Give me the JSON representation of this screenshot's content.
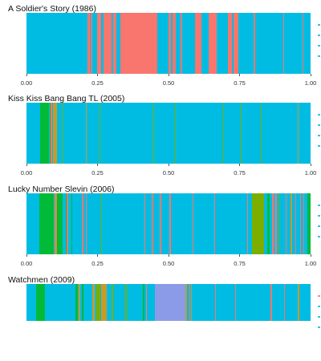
{
  "colors": {
    "base": "#00BCE3",
    "red": "#F8766D",
    "green": "#00BA38",
    "olive": "#7CAE00",
    "orange": "#C89A2A",
    "purple": "#8B9BE8"
  },
  "chart_data": [
    {
      "type": "bar",
      "title": "A Soldier's Story (1986)",
      "x_ticks": [
        "0.00",
        "0.25",
        "0.50",
        "0.75",
        "1.00"
      ],
      "xlim": [
        0,
        1
      ],
      "grid": false,
      "legend": "right",
      "base_color": "#00BCE3",
      "segments": [
        {
          "start": 0.216,
          "end": 0.222,
          "color": "#F8766D"
        },
        {
          "start": 0.226,
          "end": 0.232,
          "color": "#F8766D"
        },
        {
          "start": 0.248,
          "end": 0.262,
          "color": "#F8766D"
        },
        {
          "start": 0.272,
          "end": 0.3,
          "color": "#F8766D"
        },
        {
          "start": 0.306,
          "end": 0.315,
          "color": "#F8766D"
        },
        {
          "start": 0.33,
          "end": 0.46,
          "color": "#F8766D"
        },
        {
          "start": 0.5,
          "end": 0.508,
          "color": "#F8766D"
        },
        {
          "start": 0.515,
          "end": 0.525,
          "color": "#F8766D"
        },
        {
          "start": 0.542,
          "end": 0.548,
          "color": "#F8766D"
        },
        {
          "start": 0.594,
          "end": 0.615,
          "color": "#F8766D"
        },
        {
          "start": 0.64,
          "end": 0.67,
          "color": "#F8766D"
        },
        {
          "start": 0.71,
          "end": 0.722,
          "color": "#F8766D"
        },
        {
          "start": 0.728,
          "end": 0.745,
          "color": "#F8766D"
        },
        {
          "start": 0.8,
          "end": 0.804,
          "color": "#F8766D"
        },
        {
          "start": 0.903,
          "end": 0.908,
          "color": "#F8766D"
        },
        {
          "start": 0.972,
          "end": 0.976,
          "color": "#F8766D"
        }
      ],
      "legend_colors": [
        "#00BCE3",
        "#00BCE3",
        "#00BCE3",
        "#00BCE3"
      ]
    },
    {
      "type": "bar",
      "title": "Kiss Kiss Bang Bang TL (2005)",
      "x_ticks": [
        "0.00",
        "0.25",
        "0.50",
        "0.75",
        "1.00"
      ],
      "xlim": [
        0,
        1
      ],
      "grid": false,
      "legend": "right",
      "base_color": "#00BCE3",
      "segments": [
        {
          "start": 0.048,
          "end": 0.078,
          "color": "#00BA38"
        },
        {
          "start": 0.082,
          "end": 0.086,
          "color": "#00BA38"
        },
        {
          "start": 0.086,
          "end": 0.09,
          "color": "#F8766D"
        },
        {
          "start": 0.094,
          "end": 0.106,
          "color": "#C89A2A"
        },
        {
          "start": 0.125,
          "end": 0.128,
          "color": "#7CAE00"
        },
        {
          "start": 0.208,
          "end": 0.213,
          "color": "#C89A2A"
        },
        {
          "start": 0.258,
          "end": 0.261,
          "color": "#7CAE00"
        },
        {
          "start": 0.446,
          "end": 0.449,
          "color": "#7CAE00"
        },
        {
          "start": 0.522,
          "end": 0.525,
          "color": "#7CAE00"
        },
        {
          "start": 0.692,
          "end": 0.695,
          "color": "#7CAE00"
        },
        {
          "start": 0.754,
          "end": 0.757,
          "color": "#7CAE00"
        },
        {
          "start": 0.822,
          "end": 0.825,
          "color": "#7CAE00"
        },
        {
          "start": 0.955,
          "end": 0.958,
          "color": "#C89A2A"
        }
      ],
      "legend_colors": [
        "#00BCE3",
        "#00BCE3",
        "#00BCE3",
        "#00BCE3"
      ]
    },
    {
      "type": "bar",
      "title": "Lucky Number Slevin (2006)",
      "x_ticks": [
        "0.00",
        "0.25",
        "0.50",
        "0.75",
        "1.00"
      ],
      "xlim": [
        0,
        1
      ],
      "grid": false,
      "legend": "right",
      "base_color": "#00BCE3",
      "segments": [
        {
          "start": 0.045,
          "end": 0.095,
          "color": "#00BA38"
        },
        {
          "start": 0.098,
          "end": 0.103,
          "color": "#F8766D"
        },
        {
          "start": 0.103,
          "end": 0.108,
          "color": "#C89A2A"
        },
        {
          "start": 0.108,
          "end": 0.128,
          "color": "#00BA38"
        },
        {
          "start": 0.138,
          "end": 0.14,
          "color": "#00BA38"
        },
        {
          "start": 0.142,
          "end": 0.146,
          "color": "#F8766D"
        },
        {
          "start": 0.157,
          "end": 0.16,
          "color": "#00BA38"
        },
        {
          "start": 0.196,
          "end": 0.201,
          "color": "#F8766D"
        },
        {
          "start": 0.208,
          "end": 0.213,
          "color": "#F8766D"
        },
        {
          "start": 0.262,
          "end": 0.266,
          "color": "#7CAE00"
        },
        {
          "start": 0.415,
          "end": 0.419,
          "color": "#F8766D"
        },
        {
          "start": 0.442,
          "end": 0.447,
          "color": "#F8766D"
        },
        {
          "start": 0.47,
          "end": 0.474,
          "color": "#F8766D"
        },
        {
          "start": 0.504,
          "end": 0.508,
          "color": "#F8766D"
        },
        {
          "start": 0.584,
          "end": 0.587,
          "color": "#F8766D"
        },
        {
          "start": 0.66,
          "end": 0.663,
          "color": "#F8766D"
        },
        {
          "start": 0.776,
          "end": 0.78,
          "color": "#F8766D"
        },
        {
          "start": 0.794,
          "end": 0.837,
          "color": "#7CAE00"
        },
        {
          "start": 0.848,
          "end": 0.855,
          "color": "#00BA38"
        },
        {
          "start": 0.865,
          "end": 0.869,
          "color": "#F8766D"
        },
        {
          "start": 0.876,
          "end": 0.88,
          "color": "#F8766D"
        },
        {
          "start": 0.891,
          "end": 0.894,
          "color": "#7CAE00"
        },
        {
          "start": 0.912,
          "end": 0.916,
          "color": "#F8766D"
        },
        {
          "start": 0.93,
          "end": 0.934,
          "color": "#C89A2A"
        },
        {
          "start": 0.946,
          "end": 0.948,
          "color": "#F8766D"
        },
        {
          "start": 0.962,
          "end": 0.965,
          "color": "#F8766D"
        },
        {
          "start": 0.975,
          "end": 0.978,
          "color": "#F8766D"
        },
        {
          "start": 0.99,
          "end": 1.0,
          "color": "#00BA38"
        }
      ],
      "legend_colors": [
        "#00BCE3",
        "#00BCE3",
        "#00BCE3",
        "#00BCE3"
      ]
    },
    {
      "type": "bar",
      "title": "Watchmen (2009)",
      "x_ticks": [],
      "xlim": [
        0,
        1
      ],
      "grid": false,
      "legend": "right",
      "base_color": "#00BCE3",
      "segments": [
        {
          "start": 0.033,
          "end": 0.065,
          "color": "#00BA38"
        },
        {
          "start": 0.172,
          "end": 0.18,
          "color": "#00BA38"
        },
        {
          "start": 0.183,
          "end": 0.188,
          "color": "#C89A2A"
        },
        {
          "start": 0.196,
          "end": 0.2,
          "color": "#00BA38"
        },
        {
          "start": 0.232,
          "end": 0.241,
          "color": "#C89A2A"
        },
        {
          "start": 0.246,
          "end": 0.261,
          "color": "#7CAE00"
        },
        {
          "start": 0.262,
          "end": 0.282,
          "color": "#C89A2A"
        },
        {
          "start": 0.3,
          "end": 0.304,
          "color": "#7CAE00"
        },
        {
          "start": 0.348,
          "end": 0.352,
          "color": "#7CAE00"
        },
        {
          "start": 0.41,
          "end": 0.414,
          "color": "#00BA38"
        },
        {
          "start": 0.421,
          "end": 0.424,
          "color": "#F8766D"
        },
        {
          "start": 0.453,
          "end": 0.56,
          "color": "#8B9BE8"
        },
        {
          "start": 0.558,
          "end": 0.566,
          "color": "#C89A2A"
        },
        {
          "start": 0.574,
          "end": 0.577,
          "color": "#F8766D"
        },
        {
          "start": 0.578,
          "end": 0.583,
          "color": "#C89A2A"
        },
        {
          "start": 0.663,
          "end": 0.667,
          "color": "#F8766D"
        },
        {
          "start": 0.735,
          "end": 0.738,
          "color": "#F8766D"
        },
        {
          "start": 0.86,
          "end": 0.864,
          "color": "#F8766D"
        },
        {
          "start": 0.906,
          "end": 0.91,
          "color": "#F8766D"
        },
        {
          "start": 0.955,
          "end": 0.96,
          "color": "#C89A2A"
        }
      ],
      "legend_colors": [
        "#F8766D",
        "#00BCE3",
        "#00BCE3",
        "#00BCE3"
      ]
    }
  ]
}
